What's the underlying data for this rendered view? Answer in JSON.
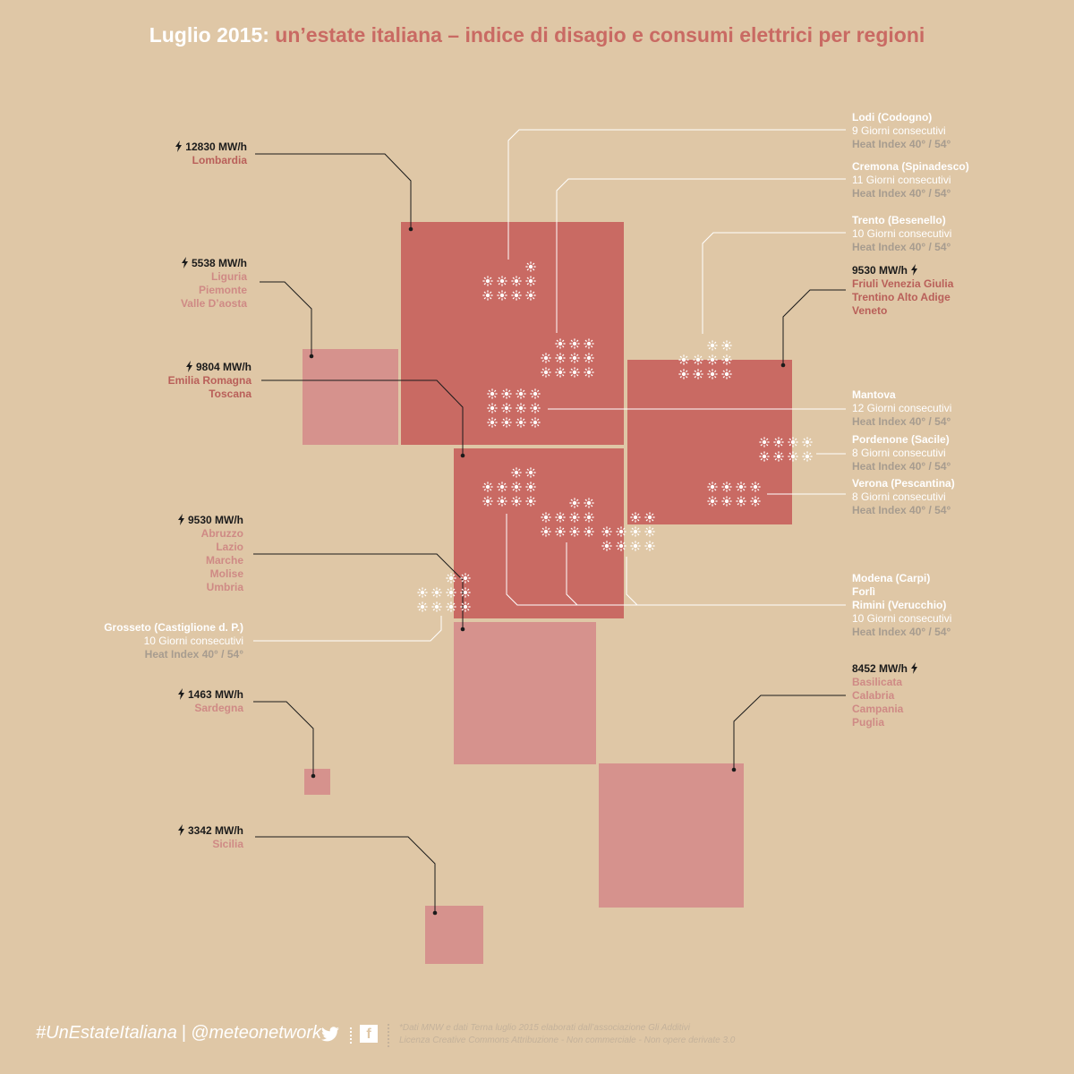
{
  "title": {
    "part1": "Luglio 2015:",
    "part2": "un’estate italiana – indice di disagio e consumi elettrici per regioni"
  },
  "colors": {
    "background": "#dfc7a6",
    "dark_red": "#c96a63",
    "light_red": "#d6928d",
    "heat_text": "#a79c8f"
  },
  "energy_groups": [
    {
      "value": "12830 MW/h",
      "regions": [
        "Lombardia"
      ]
    },
    {
      "value": "5538 MW/h",
      "regions": [
        "Liguria",
        "Piemonte",
        "Valle D’aosta"
      ]
    },
    {
      "value": "9804 MW/h",
      "regions": [
        "Emilia Romagna",
        "Toscana"
      ]
    },
    {
      "value": "9530 MW/h",
      "regions": [
        "Abruzzo",
        "Lazio",
        "Marche",
        "Molise",
        "Umbria"
      ]
    },
    {
      "value": "1463 MW/h",
      "regions": [
        "Sardegna"
      ]
    },
    {
      "value": "3342 MW/h",
      "regions": [
        "Sicilia"
      ]
    },
    {
      "value": "9530 MW/h",
      "regions": [
        "Friuli Venezia Giulia",
        "Trentino Alto Adige",
        "Veneto"
      ]
    },
    {
      "value": "8452 MW/h",
      "regions": [
        "Basilicata",
        "Calabria",
        "Campania",
        "Puglia"
      ]
    }
  ],
  "heat_locations": [
    {
      "city": "Lodi (Codogno)",
      "days": "9 Giorni consecutivi",
      "heat": "Heat Index 40° / 54°"
    },
    {
      "city": "Cremona (Spinadesco)",
      "days": "11 Giorni consecutivi",
      "heat": "Heat Index 40° / 54°"
    },
    {
      "city": "Trento (Besenello)",
      "days": "10 Giorni consecutivi",
      "heat": "Heat Index 40° / 54°"
    },
    {
      "city": "Mantova",
      "days": "12 Giorni consecutivi",
      "heat": "Heat Index 40° / 54°"
    },
    {
      "city": "Pordenone (Sacile)",
      "days": "8 Giorni consecutivi",
      "heat": "Heat Index 40° / 54°"
    },
    {
      "city": "Verona (Pescantina)",
      "days": "8 Giorni consecutivi",
      "heat": "Heat Index 40° / 54°"
    },
    {
      "cities": [
        "Modena (Carpi)",
        "Forlì",
        "Rimini (Verucchio)"
      ],
      "days": "10 Giorni consecutivi",
      "heat": "Heat Index 40° / 54°"
    },
    {
      "city": "Grosseto (Castiglione d. P.)",
      "days": "10 Giorni consecutivi",
      "heat": "Heat Index 40° / 54°"
    }
  ],
  "sun_counts": {
    "lodi": 9,
    "cremona": 11,
    "trento": 10,
    "mantova": 12,
    "pordenone": 8,
    "verona": 8,
    "modena": 10,
    "forli": 10,
    "rimini": 10,
    "grosseto": 10
  },
  "footer": {
    "hashtag": "#UnEstateItaliana",
    "separator": "|",
    "handle": "@meteonetwork",
    "facebook": "f",
    "note_line1": "*Dati MNW e dati Terna luglio 2015 elaborati dall’associazione Gli Additivi",
    "note_line2": "Licenza Creative Commons  Attribuzione - Non commerciale - Non opere derivate 3.0"
  }
}
